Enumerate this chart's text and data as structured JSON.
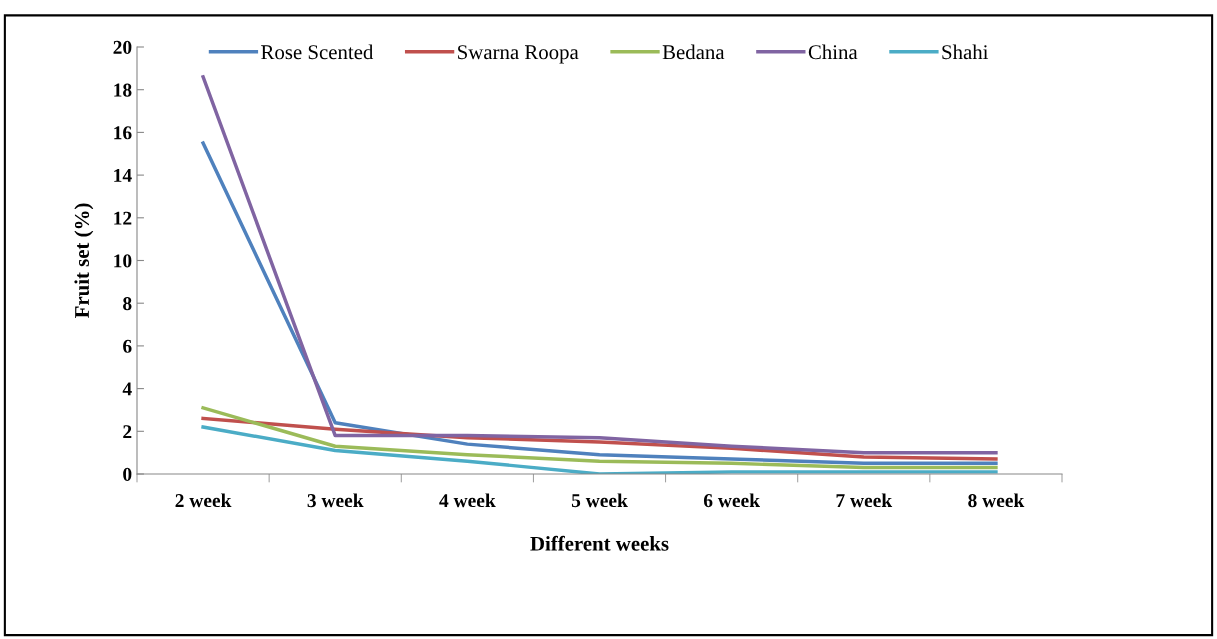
{
  "chart_data": {
    "type": "line",
    "xlabel": "Different weeks",
    "ylabel": "Fruit set (%)",
    "categories": [
      "2 week",
      "3 week",
      "4 week",
      "5 week",
      "6 week",
      "7 week",
      "8 week"
    ],
    "series": [
      {
        "name": "Rose Scented",
        "color": "#4f81bd",
        "values": [
          15.5,
          2.4,
          1.4,
          0.9,
          0.7,
          0.5,
          0.5
        ]
      },
      {
        "name": "Swarna Roopa",
        "color": "#c0504d",
        "values": [
          2.6,
          2.1,
          1.7,
          1.5,
          1.2,
          0.8,
          0.7
        ]
      },
      {
        "name": "Bedana",
        "color": "#9bbb59",
        "values": [
          3.1,
          1.3,
          0.9,
          0.6,
          0.5,
          0.3,
          0.3
        ]
      },
      {
        "name": "China",
        "color": "#8064a2",
        "values": [
          18.6,
          1.8,
          1.8,
          1.7,
          1.3,
          1.0,
          1.0
        ]
      },
      {
        "name": "Shahi",
        "color": "#4bacc6",
        "values": [
          2.2,
          1.1,
          0.6,
          0.0,
          0.1,
          0.1,
          0.1
        ]
      }
    ],
    "ylim": [
      0,
      20
    ],
    "yticks": [
      0,
      2,
      4,
      6,
      8,
      10,
      12,
      14,
      16,
      18,
      20
    ],
    "grid": false,
    "legend": "top",
    "marker": "none",
    "line_style": "solid"
  }
}
